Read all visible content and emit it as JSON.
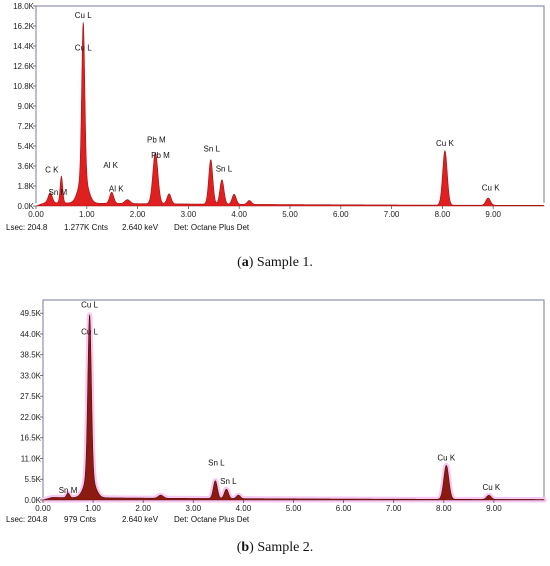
{
  "chart_data": [
    {
      "type": "area",
      "caption_label": "a",
      "caption_text": "Sample 1.",
      "xlim": [
        0,
        10
      ],
      "ylim": [
        0,
        18000
      ],
      "x_ticks": [
        "0.00",
        "1.00",
        "2.00",
        "3.00",
        "4.00",
        "5.00",
        "6.00",
        "7.00",
        "8.00",
        "9.00"
      ],
      "y_ticks": [
        {
          "label": "0.0K",
          "value": 0
        },
        {
          "label": "1.8K",
          "value": 1800
        },
        {
          "label": "3.6K",
          "value": 3600
        },
        {
          "label": "5.4K",
          "value": 5400
        },
        {
          "label": "7.2K",
          "value": 7200
        },
        {
          "label": "9.0K",
          "value": 9000
        },
        {
          "label": "10.8K",
          "value": 10800
        },
        {
          "label": "12.6K",
          "value": 12600
        },
        {
          "label": "14.4K",
          "value": 14400
        },
        {
          "label": "16.2K",
          "value": 16200
        },
        {
          "label": "18.0K",
          "value": 18000
        }
      ],
      "fill_color": "#e02020",
      "edge_color": "#a01010",
      "halo_color": "#ffffff",
      "baseline": 300,
      "peaks": [
        {
          "x": 0.28,
          "height": 900,
          "width": 0.04
        },
        {
          "x": 0.5,
          "height": 2400,
          "width": 0.025
        },
        {
          "x": 0.93,
          "height": 13800,
          "width": 0.03
        },
        {
          "x": 0.93,
          "height": 2500,
          "width": 0.09
        },
        {
          "x": 1.49,
          "height": 1000,
          "width": 0.04
        },
        {
          "x": 1.8,
          "height": 350,
          "width": 0.05
        },
        {
          "x": 2.35,
          "height": 4600,
          "width": 0.05
        },
        {
          "x": 2.62,
          "height": 900,
          "width": 0.04
        },
        {
          "x": 3.44,
          "height": 4000,
          "width": 0.04
        },
        {
          "x": 3.66,
          "height": 2200,
          "width": 0.04
        },
        {
          "x": 3.9,
          "height": 900,
          "width": 0.04
        },
        {
          "x": 4.2,
          "height": 350,
          "width": 0.04
        },
        {
          "x": 8.05,
          "height": 4900,
          "width": 0.045
        },
        {
          "x": 8.9,
          "height": 650,
          "width": 0.045
        }
      ],
      "annotations": [
        {
          "text": "Cu L",
          "x": 0.93,
          "y": 16900
        },
        {
          "text": "Cu L",
          "x": 0.93,
          "y": 14000
        },
        {
          "text": "C  K",
          "x": 0.31,
          "y": 3000
        },
        {
          "text": "Sn M",
          "x": 0.43,
          "y": 1000
        },
        {
          "text": "Al K",
          "x": 1.47,
          "y": 3400
        },
        {
          "text": "Al K",
          "x": 1.58,
          "y": 1300
        },
        {
          "text": "Pb M",
          "x": 2.37,
          "y": 5700
        },
        {
          "text": "Pb M",
          "x": 2.45,
          "y": 4300
        },
        {
          "text": "Sn L",
          "x": 3.46,
          "y": 4900
        },
        {
          "text": "Sn L",
          "x": 3.7,
          "y": 3100
        },
        {
          "text": "Cu K",
          "x": 8.05,
          "y": 5400
        },
        {
          "text": "Cu K",
          "x": 8.95,
          "y": 1400
        }
      ],
      "status": {
        "lsec": "Lsec: 204.8",
        "counts": "1.277K Cnts",
        "energy": "2.640 keV",
        "detector": "Det: Octane Plus Det"
      }
    },
    {
      "type": "area",
      "caption_label": "b",
      "caption_text": "Sample 2.",
      "xlim": [
        0,
        10
      ],
      "ylim": [
        0,
        53000
      ],
      "x_ticks": [
        "0.00",
        "1.00",
        "2.00",
        "3.00",
        "4.00",
        "5.00",
        "6.00",
        "7.00",
        "8.00",
        "9.00"
      ],
      "y_ticks": [
        {
          "label": "0.0K",
          "value": 0
        },
        {
          "label": "5.5K",
          "value": 5500
        },
        {
          "label": "11.0K",
          "value": 11000
        },
        {
          "label": "16.5K",
          "value": 16500
        },
        {
          "label": "22.0K",
          "value": 22000
        },
        {
          "label": "27.5K",
          "value": 27500
        },
        {
          "label": "33.0K",
          "value": 33000
        },
        {
          "label": "38.5K",
          "value": 38500
        },
        {
          "label": "44.0K",
          "value": 44000
        },
        {
          "label": "49.5K",
          "value": 49500
        }
      ],
      "fill_color": "#8b1a10",
      "edge_color": "#5a0e08",
      "halo_color": "#f7c8f3",
      "baseline": 700,
      "peaks": [
        {
          "x": 0.5,
          "height": 1200,
          "width": 0.03
        },
        {
          "x": 0.93,
          "height": 42500,
          "width": 0.035
        },
        {
          "x": 0.93,
          "height": 6000,
          "width": 0.1
        },
        {
          "x": 2.35,
          "height": 800,
          "width": 0.05
        },
        {
          "x": 3.44,
          "height": 4700,
          "width": 0.04
        },
        {
          "x": 3.66,
          "height": 2500,
          "width": 0.04
        },
        {
          "x": 3.9,
          "height": 900,
          "width": 0.04
        },
        {
          "x": 8.05,
          "height": 9000,
          "width": 0.05
        },
        {
          "x": 8.9,
          "height": 1100,
          "width": 0.045
        }
      ],
      "annotations": [
        {
          "text": "Cu L",
          "x": 0.93,
          "y": 51000
        },
        {
          "text": "Cu L",
          "x": 0.93,
          "y": 43800
        },
        {
          "text": "Sn M",
          "x": 0.5,
          "y": 1900
        },
        {
          "text": "Sn L",
          "x": 3.46,
          "y": 9200
        },
        {
          "text": "Sn L",
          "x": 3.7,
          "y": 4300
        },
        {
          "text": "Cu K",
          "x": 8.05,
          "y": 10500
        },
        {
          "text": "Cu K",
          "x": 8.95,
          "y": 2600
        }
      ],
      "status": {
        "lsec": "Lsec: 204.8",
        "counts": "979 Cnts",
        "energy": "2.640 keV",
        "detector": "Det: Octane Plus Det"
      }
    }
  ]
}
